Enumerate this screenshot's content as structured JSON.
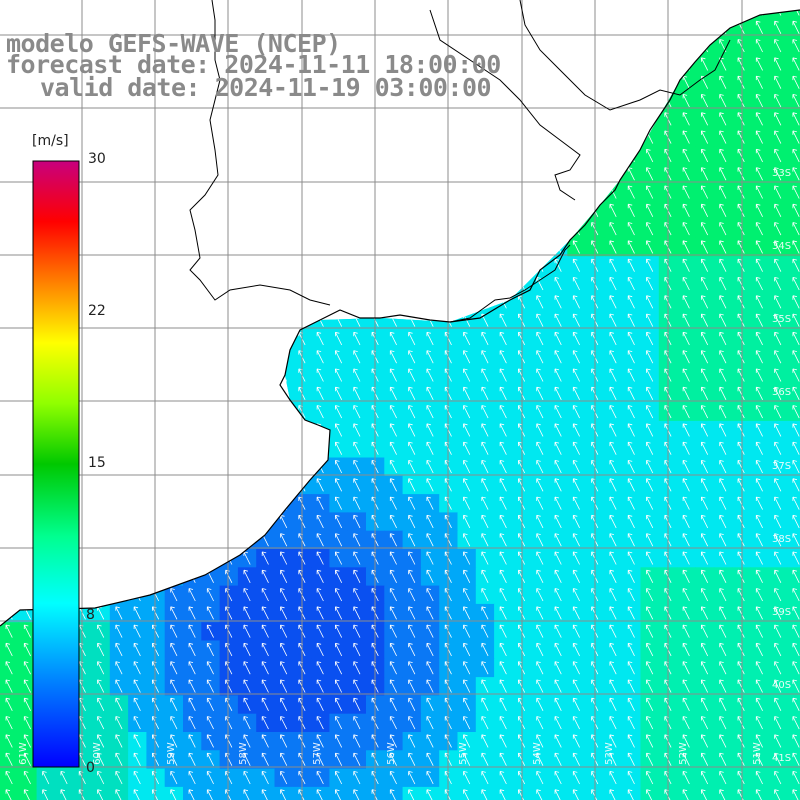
{
  "title": {
    "line1": "modelo GEFS-WAVE (NCEP)",
    "line2": "forecast date: 2024-11-11 18:00:00",
    "line3": "valid date: 2024-11-19 03:00:00"
  },
  "colorbar": {
    "unit": "[m/s]",
    "ticks": [
      "30",
      "22",
      "15",
      "8",
      "0"
    ],
    "min": 0,
    "max": 30
  },
  "lat_labels": [
    "33S",
    "34S",
    "35S",
    "36S",
    "37S",
    "38S",
    "39S",
    "40S",
    "41S"
  ],
  "lon_labels": [
    "61W",
    "60W",
    "59W",
    "58W",
    "57W",
    "56W",
    "55W",
    "54W",
    "53W",
    "52W",
    "51W"
  ],
  "colors": {
    "land": "#ffffff",
    "grid": "#8c8c8c",
    "coast": "#000000",
    "arrow": "#ffffff",
    "title": "#8a8a8a"
  }
}
